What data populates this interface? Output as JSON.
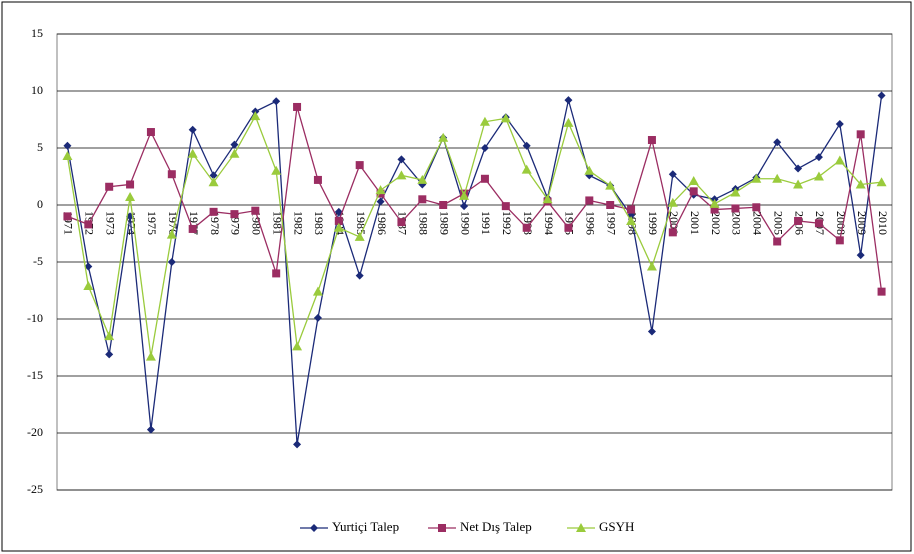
{
  "chart_data": {
    "type": "line",
    "categories": [
      "1971",
      "1972",
      "1973",
      "1974",
      "1975",
      "1976",
      "1977",
      "1978",
      "1979",
      "1980",
      "1981",
      "1982",
      "1983",
      "1984",
      "1985",
      "1986",
      "1987",
      "1988",
      "1989",
      "1990",
      "1991",
      "1992",
      "1993",
      "1994",
      "1995",
      "1996",
      "1997",
      "1998",
      "1999",
      "2000",
      "2001",
      "2002",
      "2003",
      "2004",
      "2005",
      "2006",
      "2007",
      "2008",
      "2009",
      "2010"
    ],
    "series": [
      {
        "name": "Yurtiçi Talep",
        "color": "#1b2a78",
        "marker": "diamond",
        "values": [
          5.2,
          -5.4,
          -13.1,
          -1.0,
          -19.7,
          -5.0,
          6.6,
          2.6,
          5.3,
          8.2,
          9.1,
          -21.0,
          -9.9,
          -0.6,
          -6.2,
          0.3,
          4.0,
          1.8,
          5.9,
          -0.1,
          5.0,
          7.7,
          5.2,
          0.6,
          9.2,
          2.6,
          1.7,
          -0.9,
          -11.1,
          2.7,
          0.9,
          0.5,
          1.4,
          2.4,
          5.5,
          3.2,
          4.2,
          7.1,
          -4.4,
          9.6
        ]
      },
      {
        "name": "Net Dış Talep",
        "color": "#9b2d62",
        "marker": "square",
        "values": [
          -1.0,
          -1.7,
          1.6,
          1.8,
          6.4,
          2.7,
          -2.1,
          -0.6,
          -0.8,
          -0.5,
          -6.0,
          8.6,
          2.2,
          -1.4,
          3.5,
          1.0,
          -1.5,
          0.5,
          0.0,
          1.0,
          2.3,
          -0.1,
          -2.0,
          0.3,
          -2.0,
          0.4,
          0.0,
          -0.4,
          5.7,
          -2.4,
          1.2,
          -0.4,
          -0.3,
          -0.2,
          -3.2,
          -1.4,
          -1.6,
          -3.1,
          6.2,
          -7.6
        ]
      },
      {
        "name": "GSYH",
        "color": "#9acb3c",
        "marker": "triangle",
        "values": [
          4.3,
          -7.1,
          -11.5,
          0.7,
          -13.3,
          -2.6,
          4.5,
          2.0,
          4.5,
          7.8,
          3.0,
          -12.4,
          -7.6,
          -2.0,
          -2.8,
          1.3,
          2.6,
          2.2,
          5.9,
          0.8,
          7.3,
          7.6,
          3.1,
          0.5,
          7.2,
          3.0,
          1.7,
          -1.4,
          -5.4,
          0.2,
          2.1,
          0.1,
          1.1,
          2.3,
          2.3,
          1.8,
          2.5,
          3.9,
          1.8,
          2.0
        ]
      }
    ],
    "ylim": [
      -25,
      15
    ],
    "yticks": [
      15,
      10,
      5,
      0,
      -5,
      -10,
      -15,
      -20,
      -25
    ],
    "grid": true,
    "legend": "bottom"
  }
}
